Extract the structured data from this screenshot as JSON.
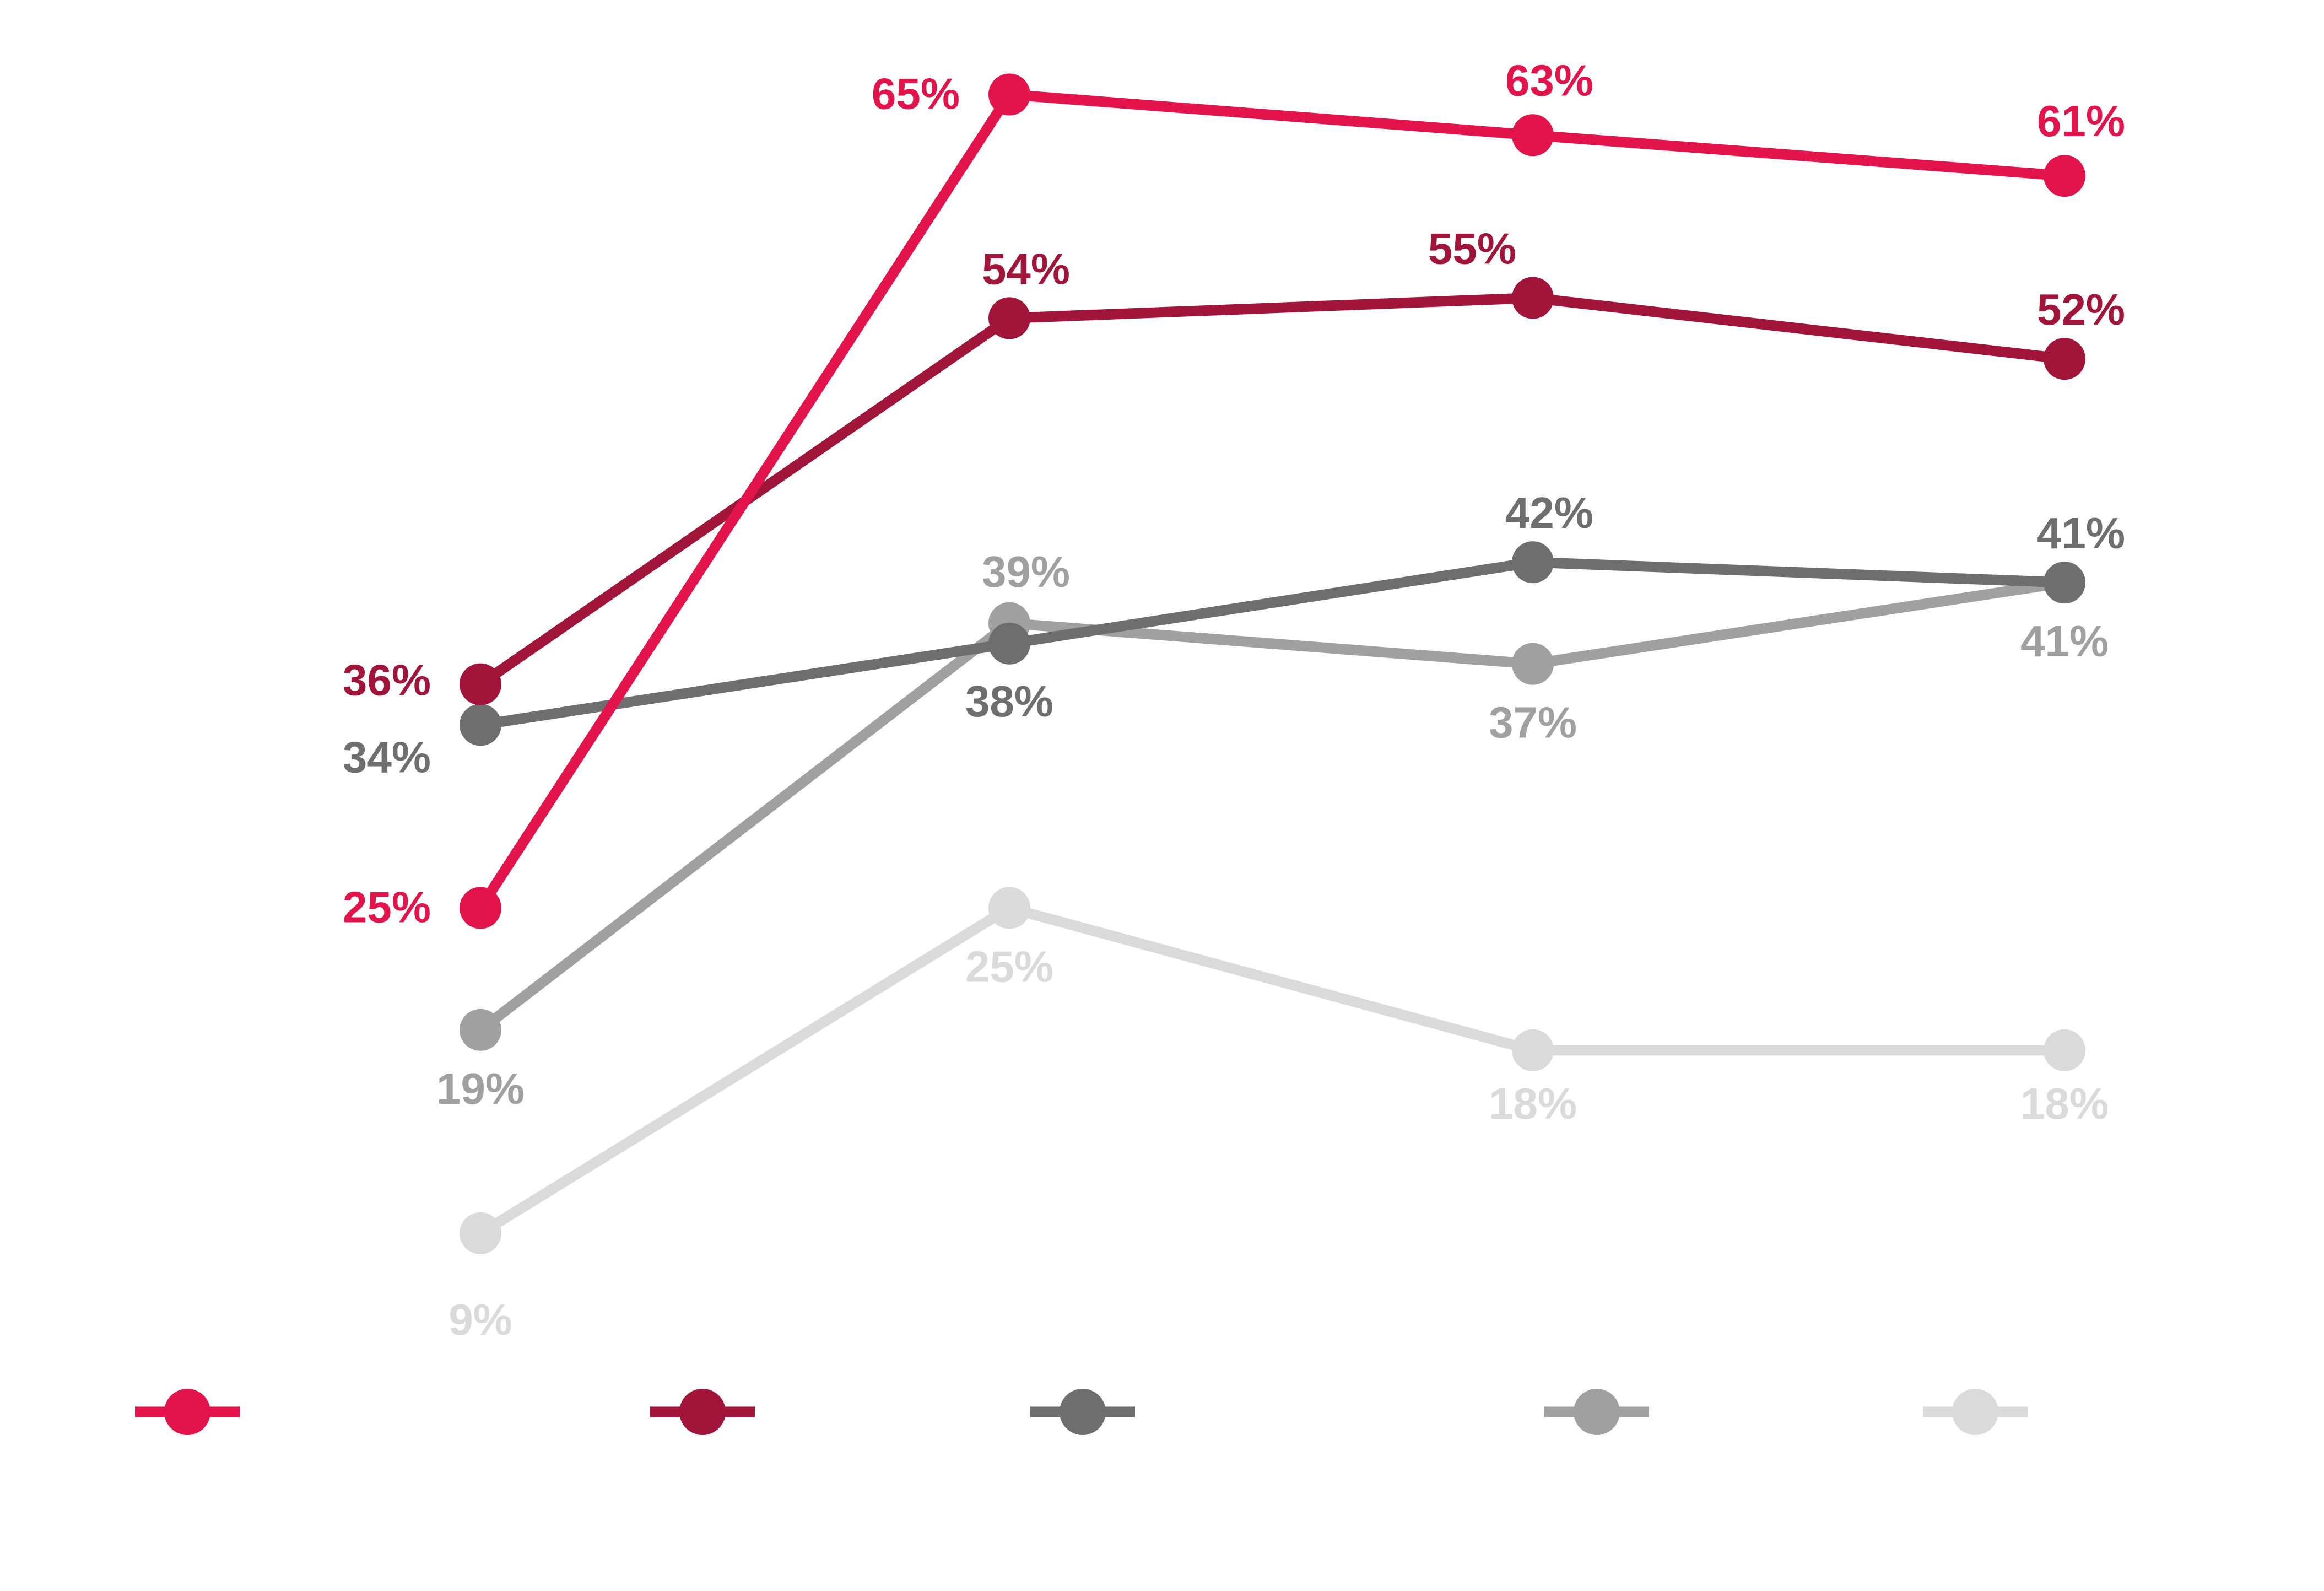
{
  "chart_data": {
    "type": "line",
    "title": "",
    "xlabel": "",
    "ylabel": "",
    "ylim": [
      0,
      70
    ],
    "grid": false,
    "x": [
      "1",
      "2",
      "3",
      "4"
    ],
    "legend_position": "bottom",
    "series": [
      {
        "name": "",
        "color": "#e3134b",
        "values": [
          25,
          65,
          63,
          61
        ],
        "labels": [
          "25%",
          "65%",
          "63%",
          "61%"
        ],
        "label_pos": [
          "left",
          "left",
          "above",
          "above"
        ]
      },
      {
        "name": "",
        "color": "#a01539",
        "values": [
          36,
          54,
          55,
          52
        ],
        "labels": [
          "36%",
          "54%",
          "55%",
          "52%"
        ],
        "label_pos": [
          "left",
          "above",
          "above-left",
          "above"
        ]
      },
      {
        "name": "",
        "color": "#6e6e6e",
        "values": [
          34,
          38,
          42,
          41
        ],
        "labels": [
          "34%",
          "38%",
          "42%",
          "41%"
        ],
        "label_pos": [
          "left",
          "below",
          "above",
          "above"
        ]
      },
      {
        "name": "",
        "color": "#a0a0a0",
        "values": [
          19,
          39,
          37,
          41
        ],
        "labels": [
          "19%",
          "39%",
          "37%",
          "41%"
        ],
        "label_pos": [
          "below",
          "above",
          "below",
          "below"
        ]
      },
      {
        "name": "",
        "color": "#dadada",
        "values": [
          9,
          25,
          18,
          18
        ],
        "labels": [
          "9%",
          "25%",
          "18%",
          "18%"
        ],
        "label_pos": [
          "below",
          "below",
          "below",
          "below"
        ]
      }
    ]
  }
}
